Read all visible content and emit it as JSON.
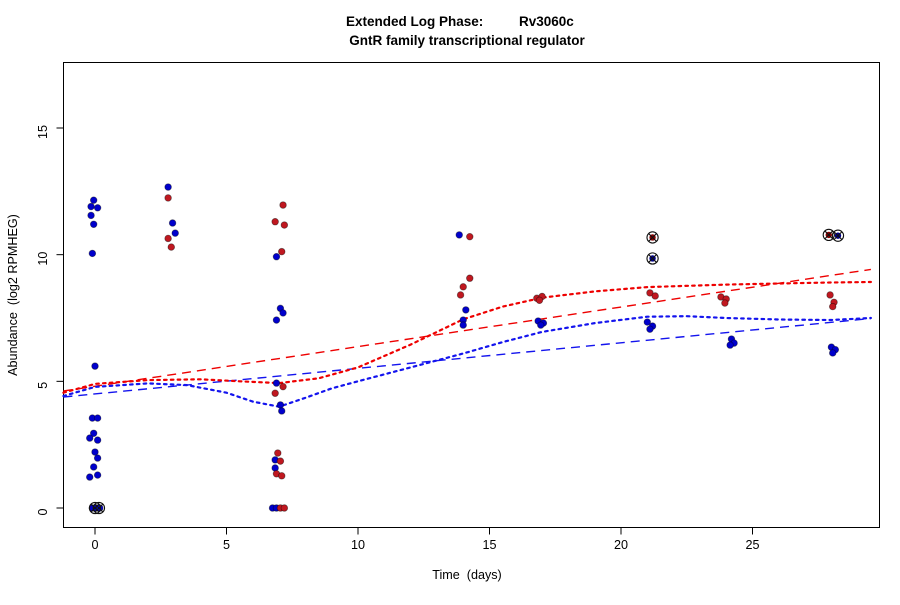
{
  "chart_data": {
    "type": "scatter",
    "title_line1_left": "Extended Log Phase:",
    "title_line1_right": "Rv3060c",
    "title_line2": "GntR family transcriptional regulator",
    "xlabel": "Time  (days)",
    "ylabel": "Abundance  (log2 RPMHEG)",
    "xlim": [
      -1.2,
      29.85
    ],
    "ylim": [
      -0.8,
      17.6
    ],
    "x_ticks": [
      0,
      5,
      10,
      15,
      20,
      25
    ],
    "y_ticks": [
      0,
      5,
      10,
      15
    ],
    "grid": false,
    "legend": "none",
    "colors": {
      "blue_point": "#0000CC",
      "red_point": "#C01820",
      "blue_line": "#1414EE",
      "red_line": "#EE0000",
      "flag_dark_red": "#8B0000",
      "flag_navy": "#00008B",
      "mark_black": "#101010"
    },
    "series": [
      {
        "name": "blue-samples",
        "symbol": "dot",
        "color": "#0000CC",
        "points": [
          [
            -0.05,
            12.15
          ],
          [
            -0.15,
            11.9
          ],
          [
            0.1,
            11.85
          ],
          [
            -0.15,
            11.55
          ],
          [
            -0.05,
            11.2
          ],
          [
            -0.1,
            10.05
          ],
          [
            0.0,
            5.6
          ],
          [
            -0.1,
            3.55
          ],
          [
            0.1,
            3.55
          ],
          [
            -0.05,
            2.95
          ],
          [
            -0.2,
            2.76
          ],
          [
            0.1,
            2.68
          ],
          [
            0.0,
            2.21
          ],
          [
            0.1,
            1.97
          ],
          [
            -0.05,
            1.62
          ],
          [
            0.1,
            1.3
          ],
          [
            -0.2,
            1.22
          ],
          [
            -0.1,
            0.0
          ],
          [
            0.05,
            0.0
          ],
          [
            0.18,
            0.0
          ],
          [
            2.78,
            12.67
          ],
          [
            2.95,
            11.25
          ],
          [
            3.05,
            10.85
          ],
          [
            6.9,
            9.92
          ],
          [
            7.05,
            7.88
          ],
          [
            7.15,
            7.7
          ],
          [
            6.9,
            7.42
          ],
          [
            6.9,
            4.93
          ],
          [
            7.05,
            4.07
          ],
          [
            7.1,
            3.83
          ],
          [
            6.85,
            1.9
          ],
          [
            6.85,
            1.58
          ],
          [
            6.75,
            0.0
          ],
          [
            6.9,
            0.0
          ],
          [
            13.85,
            10.78
          ],
          [
            14.1,
            7.82
          ],
          [
            14.0,
            7.42
          ],
          [
            14.0,
            7.22
          ],
          [
            16.85,
            7.38
          ],
          [
            17.05,
            7.3
          ],
          [
            16.95,
            7.22
          ],
          [
            21.0,
            7.34
          ],
          [
            21.2,
            7.18
          ],
          [
            21.1,
            7.06
          ],
          [
            24.2,
            6.67
          ],
          [
            24.3,
            6.51
          ],
          [
            24.15,
            6.43
          ],
          [
            28.0,
            6.35
          ],
          [
            28.15,
            6.25
          ],
          [
            28.05,
            6.12
          ]
        ]
      },
      {
        "name": "red-samples",
        "symbol": "dot",
        "color": "#C01820",
        "points": [
          [
            2.78,
            12.24
          ],
          [
            2.78,
            10.64
          ],
          [
            2.9,
            10.3
          ],
          [
            7.15,
            11.96
          ],
          [
            6.85,
            11.3
          ],
          [
            7.2,
            11.17
          ],
          [
            7.1,
            10.12
          ],
          [
            7.15,
            4.79
          ],
          [
            6.85,
            4.53
          ],
          [
            6.95,
            2.17
          ],
          [
            7.05,
            1.85
          ],
          [
            6.9,
            1.35
          ],
          [
            7.1,
            1.27
          ],
          [
            7.05,
            0.0
          ],
          [
            7.2,
            0.0
          ],
          [
            14.25,
            10.71
          ],
          [
            14.25,
            9.07
          ],
          [
            14.0,
            8.73
          ],
          [
            13.9,
            8.41
          ],
          [
            16.8,
            8.28
          ],
          [
            17.0,
            8.35
          ],
          [
            16.9,
            8.2
          ],
          [
            21.1,
            8.49
          ],
          [
            21.3,
            8.37
          ],
          [
            23.8,
            8.33
          ],
          [
            24.0,
            8.25
          ],
          [
            23.95,
            8.09
          ],
          [
            27.95,
            8.41
          ],
          [
            28.1,
            8.12
          ],
          [
            28.05,
            7.95
          ]
        ]
      },
      {
        "name": "flagged-red-samples",
        "symbol": "circle-x",
        "color": "#8B0000",
        "points": [
          [
            21.2,
            10.68
          ],
          [
            27.9,
            10.78
          ]
        ]
      },
      {
        "name": "flagged-blue-samples",
        "symbol": "circle-x",
        "color": "#00008B",
        "points": [
          [
            21.2,
            9.85
          ],
          [
            28.25,
            10.75
          ]
        ]
      },
      {
        "name": "flagged-zero-marks",
        "symbol": "circle-x",
        "color": "none",
        "points": [
          [
            0.0,
            0.0
          ],
          [
            0.15,
            0.0
          ]
        ]
      }
    ],
    "trend_lines": [
      {
        "name": "red-linear-fit",
        "color": "#EE0000",
        "style": "dashed",
        "width": 1.4,
        "points": [
          [
            -1.2,
            4.62
          ],
          [
            29.5,
            9.42
          ]
        ]
      },
      {
        "name": "blue-linear-fit",
        "color": "#1414EE",
        "style": "dashed",
        "width": 1.4,
        "points": [
          [
            -1.2,
            4.38
          ],
          [
            29.5,
            7.48
          ]
        ]
      },
      {
        "name": "red-smooth-fit",
        "color": "#EE0000",
        "style": "dotted",
        "width": 2.2,
        "points": [
          [
            -1.2,
            4.55
          ],
          [
            0,
            4.9
          ],
          [
            2,
            5.05
          ],
          [
            4,
            5.08
          ],
          [
            5.5,
            5.0
          ],
          [
            7,
            4.93
          ],
          [
            8.5,
            5.12
          ],
          [
            10,
            5.55
          ],
          [
            12,
            6.45
          ],
          [
            14,
            7.45
          ],
          [
            15.5,
            7.95
          ],
          [
            17,
            8.3
          ],
          [
            19,
            8.55
          ],
          [
            21,
            8.72
          ],
          [
            24,
            8.82
          ],
          [
            26,
            8.86
          ],
          [
            28,
            8.9
          ],
          [
            29.5,
            8.92
          ]
        ]
      },
      {
        "name": "blue-smooth-fit",
        "color": "#1414EE",
        "style": "dotted",
        "width": 2.2,
        "points": [
          [
            -1.2,
            4.42
          ],
          [
            0,
            4.78
          ],
          [
            2,
            4.92
          ],
          [
            3.5,
            4.85
          ],
          [
            5,
            4.55
          ],
          [
            6,
            4.2
          ],
          [
            7,
            4.0
          ],
          [
            8,
            4.35
          ],
          [
            9,
            4.72
          ],
          [
            10,
            5.0
          ],
          [
            12,
            5.55
          ],
          [
            14,
            6.1
          ],
          [
            15.5,
            6.55
          ],
          [
            17,
            6.95
          ],
          [
            19,
            7.3
          ],
          [
            21,
            7.55
          ],
          [
            22.5,
            7.57
          ],
          [
            24,
            7.5
          ],
          [
            26,
            7.44
          ],
          [
            28,
            7.42
          ],
          [
            29.5,
            7.5
          ]
        ]
      }
    ]
  }
}
